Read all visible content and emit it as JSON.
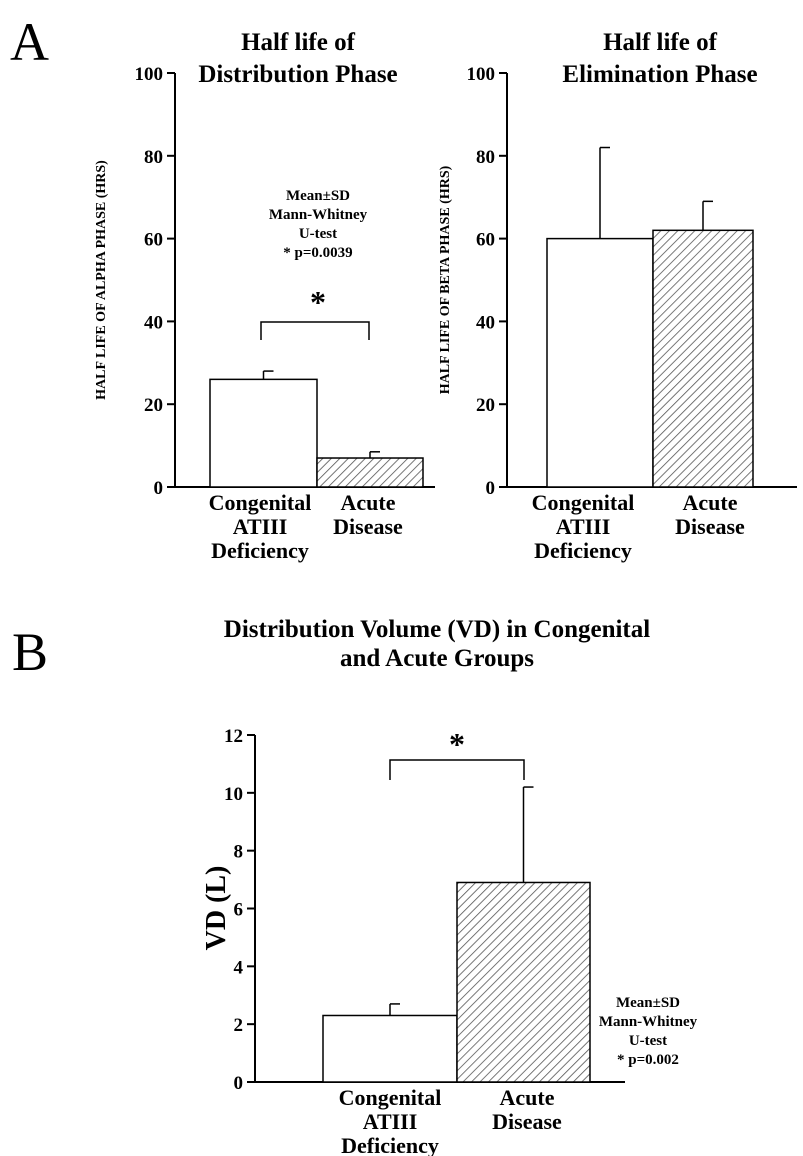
{
  "panel_labels": {
    "a": "A",
    "b": "B"
  },
  "chart_data": [
    {
      "type": "bar",
      "title": [
        "Half life of",
        "Distribution Phase"
      ],
      "xlabel": "",
      "ylabel": "HALF LIFE OF ALPHA PHASE (HRS)",
      "ylim": [
        0,
        100
      ],
      "yticks": [
        "0",
        "20",
        "40",
        "60",
        "80",
        "100"
      ],
      "categories": [
        [
          "Congenital",
          "ATIII",
          "Deficiency"
        ],
        [
          "Acute",
          "Disease"
        ]
      ],
      "values": [
        26,
        7
      ],
      "error_sd": [
        2,
        1.5
      ],
      "fill": [
        "white",
        "hatched"
      ],
      "annotation": [
        "Mean±SD",
        "Mann-Whitney",
        "U-test",
        "* p=0.0039"
      ],
      "significance": "*"
    },
    {
      "type": "bar",
      "title": [
        "Half life of",
        "Elimination Phase"
      ],
      "xlabel": "",
      "ylabel": "HALF LIFE OF BETA PHASE (HRS)",
      "ylim": [
        0,
        100
      ],
      "yticks": [
        "0",
        "20",
        "40",
        "60",
        "80",
        "100"
      ],
      "categories": [
        [
          "Congenital",
          "ATIII",
          "Deficiency"
        ],
        [
          "Acute",
          "Disease"
        ]
      ],
      "values": [
        60,
        62
      ],
      "error_sd": [
        22,
        7
      ],
      "fill": [
        "white",
        "hatched"
      ]
    },
    {
      "type": "bar",
      "title": [
        "Distribution Volume (VD) in Congenital",
        "and Acute Groups"
      ],
      "xlabel": "",
      "ylabel": "VD (L)",
      "ylim": [
        0,
        12
      ],
      "yticks": [
        "0",
        "2",
        "4",
        "6",
        "8",
        "10",
        "12"
      ],
      "categories": [
        [
          "Congenital",
          "ATIII",
          "Deficiency"
        ],
        [
          "Acute",
          "Disease"
        ]
      ],
      "values": [
        2.3,
        6.9
      ],
      "error_sd": [
        0.4,
        3.3
      ],
      "fill": [
        "white",
        "hatched"
      ],
      "annotation": [
        "Mean±SD",
        "Mann-Whitney",
        "U-test",
        "* p=0.002"
      ],
      "significance": "*"
    }
  ]
}
